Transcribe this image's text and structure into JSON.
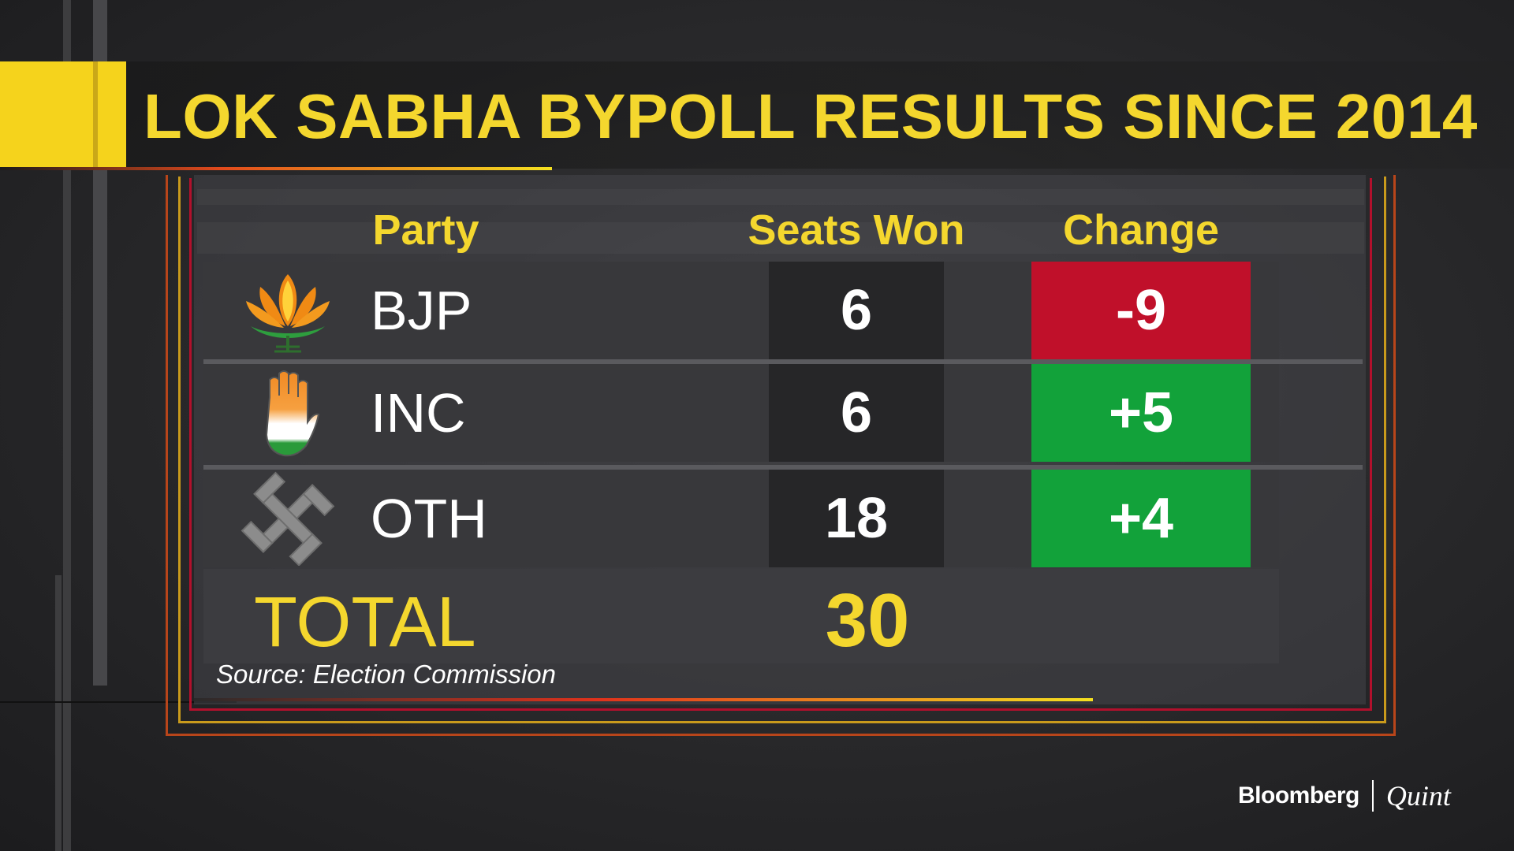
{
  "title": "LOK SABHA BYPOLL RESULTS SINCE 2014",
  "chart_data": {
    "type": "table",
    "columns": [
      "Party",
      "Seats Won",
      "Change"
    ],
    "rows": [
      {
        "party": "BJP",
        "logo": "lotus-icon",
        "seats": "6",
        "change": "-9",
        "change_value": -9,
        "change_color": "#c0102a"
      },
      {
        "party": "INC",
        "logo": "hand-icon",
        "seats": "6",
        "change": "+5",
        "change_value": 5,
        "change_color": "#12a23a"
      },
      {
        "party": "OTH",
        "logo": "swastik-icon",
        "seats": "18",
        "change": "+4",
        "change_value": 4,
        "change_color": "#12a23a"
      }
    ],
    "total_label": "TOTAL",
    "total_value": "30"
  },
  "source": "Source: Election Commission",
  "brand": {
    "primary": "Bloomberg",
    "secondary": "Quint"
  },
  "colors": {
    "accent": "#f4d72e",
    "negative": "#c0102a",
    "positive": "#12a23a"
  }
}
